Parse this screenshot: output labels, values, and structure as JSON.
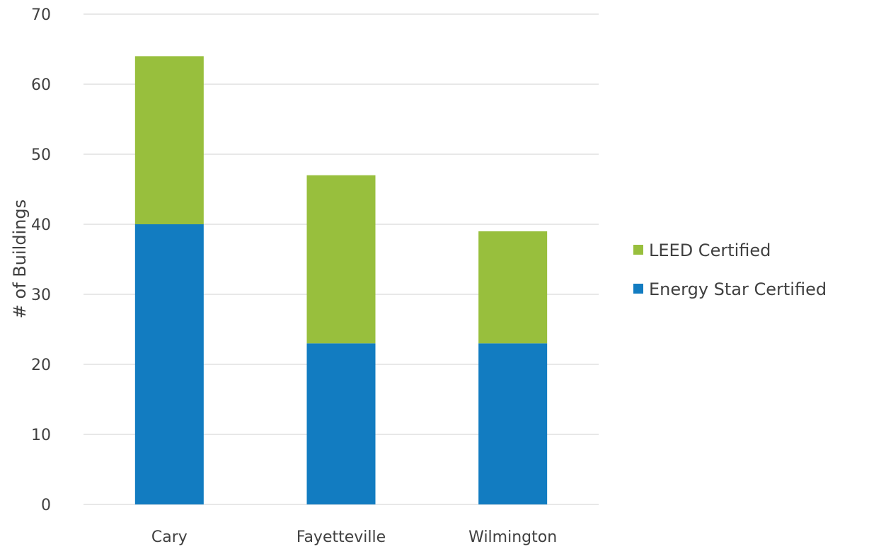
{
  "chart_data": {
    "type": "bar",
    "stacked": true,
    "title": "",
    "xlabel": "",
    "ylabel": "# of Buildings",
    "categories": [
      "Cary",
      "Fayetteville",
      "Wilmington"
    ],
    "series": [
      {
        "name": "Energy Star Certified",
        "values": [
          40,
          23,
          23
        ],
        "color": "#127CC1"
      },
      {
        "name": "LEED Certified",
        "values": [
          24,
          24,
          16
        ],
        "color": "#98BF3D"
      }
    ],
    "ylim": [
      0,
      70
    ],
    "yticks": [
      "0",
      "10",
      "20",
      "30",
      "40",
      "50",
      "60",
      "70"
    ],
    "grid": true,
    "gridline_color": "#d9d9d9",
    "legend": {
      "placement": "right",
      "order": [
        "LEED Certified",
        "Energy Star Certified"
      ]
    }
  }
}
